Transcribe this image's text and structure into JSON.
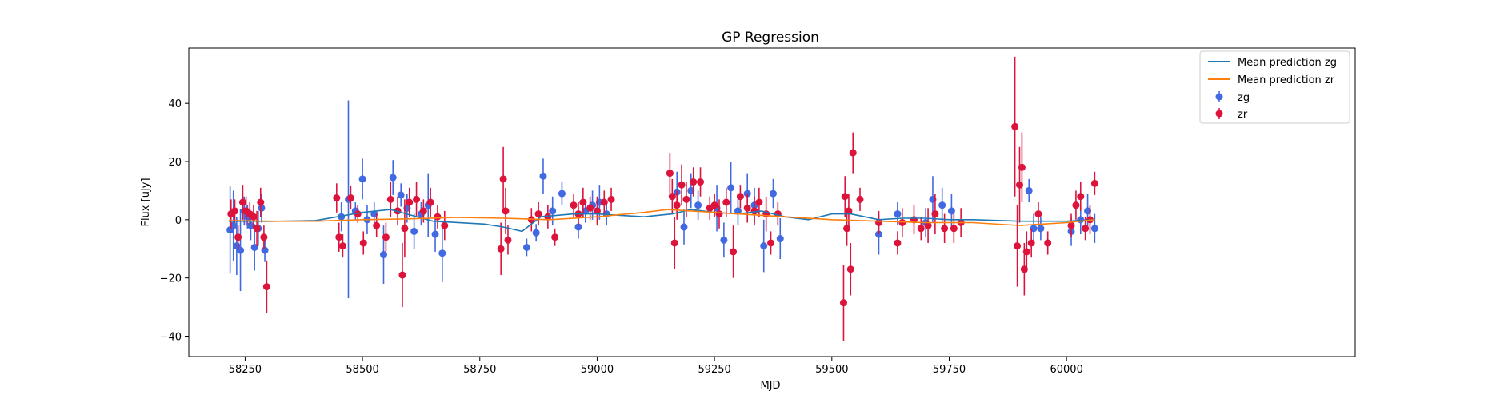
{
  "chart_data": {
    "type": "scatter",
    "title": "GP Regression",
    "xlabel": "MJD",
    "ylabel": "Flux [uJy]",
    "xlim": [
      58130,
      60615
    ],
    "ylim": [
      -47,
      59
    ],
    "xticks": [
      58250,
      58500,
      58750,
      59000,
      59250,
      59500,
      59750,
      60000
    ],
    "yticks": [
      -40,
      -20,
      0,
      20,
      40
    ],
    "legend_position": "top-right",
    "legend": [
      "Mean prediction zg",
      "Mean prediction zr",
      "zg",
      "zr"
    ],
    "colors": {
      "mean_zg": "#1f77b4",
      "mean_zr": "#ff7f0e",
      "zg": "#4169e1",
      "zr": "#dc143c"
    },
    "mean_prediction": [
      {
        "name": "Mean prediction zg",
        "x": [
          58215,
          58300,
          58400,
          58500,
          58560,
          58650,
          58760,
          58800,
          58840,
          58880,
          58950,
          59000,
          59050,
          59100,
          59160,
          59200,
          59250,
          59300,
          59350,
          59400,
          59450,
          59500,
          59540,
          59600,
          59650,
          59700,
          59750,
          59800,
          59900,
          60000,
          60060
        ],
        "y": [
          -0.5,
          -0.6,
          -0.3,
          2.5,
          3.5,
          -0.5,
          -1.5,
          -2.5,
          -4,
          1,
          2,
          2,
          1.5,
          1,
          2,
          3.5,
          2.5,
          2,
          3,
          1,
          0,
          2,
          2,
          0,
          0.5,
          0.5,
          0,
          0,
          -0.5,
          -0.5,
          0
        ]
      },
      {
        "name": "Mean prediction zr",
        "x": [
          58215,
          58300,
          58400,
          58500,
          58600,
          58700,
          58800,
          58900,
          59000,
          59100,
          59150,
          59200,
          59250,
          59300,
          59400,
          59500,
          59600,
          59700,
          59800,
          59900,
          59950,
          60000,
          60060
        ],
        "y": [
          -0.3,
          -0.5,
          -0.5,
          0,
          0.3,
          0.8,
          0.5,
          0,
          1,
          2.5,
          3.5,
          3,
          2.5,
          2,
          1,
          0,
          -0.5,
          -1,
          -1,
          -2,
          -1.5,
          -1,
          0
        ]
      }
    ],
    "series": [
      {
        "name": "zg",
        "x": [
          58218,
          58225,
          58232,
          58240,
          58248,
          58255,
          58262,
          58270,
          58278,
          58285,
          58292,
          58455,
          58470,
          58485,
          58500,
          58510,
          58525,
          58545,
          58565,
          58582,
          58595,
          58610,
          58625,
          58640,
          58655,
          58670,
          58850,
          58870,
          58885,
          58905,
          58925,
          58960,
          58975,
          58990,
          59005,
          59020,
          59170,
          59185,
          59200,
          59215,
          59255,
          59270,
          59285,
          59300,
          59320,
          59335,
          59355,
          59375,
          59390,
          59600,
          59640,
          59700,
          59715,
          59735,
          59755,
          59920,
          59930,
          59945,
          60010,
          60030,
          60045,
          60060
        ],
        "y": [
          -3.5,
          -2,
          -9,
          -10.5,
          3,
          1,
          -2,
          -9.5,
          -3,
          4,
          -10.5,
          1,
          7,
          3,
          14,
          0,
          2,
          -12,
          14.5,
          8.5,
          4,
          -4,
          2,
          5,
          -5,
          -11.5,
          -9.5,
          -4.5,
          15,
          3,
          9,
          -2.5,
          3,
          5,
          6,
          2,
          9.5,
          -2.5,
          10,
          5,
          4,
          -7,
          11,
          3,
          9,
          5,
          -9,
          9,
          -6.5,
          -5,
          2,
          -1,
          7,
          5,
          3,
          10,
          -3,
          -3,
          -4,
          0,
          3,
          -3
        ],
        "err": [
          15,
          12,
          10,
          14,
          5,
          4,
          5,
          8,
          6,
          5,
          4,
          5,
          34,
          3,
          7,
          5,
          4,
          10,
          6,
          4,
          5,
          6,
          4,
          11,
          6,
          10,
          3,
          3,
          6,
          5,
          4,
          4,
          4,
          5,
          6,
          4,
          7,
          6,
          6,
          5,
          8,
          6,
          9,
          5,
          7,
          6,
          9,
          5,
          7,
          7,
          4,
          5,
          8,
          6,
          6,
          4,
          5,
          4,
          5,
          5,
          6,
          5
        ]
      },
      {
        "name": "zr",
        "x": [
          58220,
          58228,
          58235,
          58245,
          58252,
          58260,
          58268,
          58275,
          58283,
          58290,
          58296,
          58445,
          58450,
          58458,
          58475,
          58490,
          58502,
          58530,
          58550,
          58560,
          58575,
          58585,
          58590,
          58600,
          58615,
          58630,
          58645,
          58660,
          58675,
          58795,
          58800,
          58805,
          58810,
          58860,
          58875,
          58895,
          58910,
          58950,
          58960,
          58970,
          58985,
          59000,
          59015,
          59030,
          59155,
          59160,
          59165,
          59170,
          59180,
          59190,
          59205,
          59220,
          59240,
          59250,
          59260,
          59275,
          59290,
          59305,
          59320,
          59335,
          59345,
          59360,
          59370,
          59385,
          59525,
          59528,
          59532,
          59536,
          59540,
          59545,
          59560,
          59600,
          59640,
          59650,
          59675,
          59690,
          59705,
          59720,
          59740,
          59760,
          59775,
          59890,
          59895,
          59900,
          59905,
          59910,
          59915,
          59925,
          59940,
          59960,
          60010,
          60020,
          60030,
          60040,
          60050,
          60060
        ],
        "y": [
          2,
          3,
          -6,
          6,
          3,
          2,
          1,
          -3,
          6,
          -6,
          -23,
          7.5,
          -6,
          -9,
          7.5,
          2,
          -8,
          -2,
          -6,
          7,
          3,
          -19,
          -3,
          6,
          7,
          3,
          6,
          1,
          -2,
          -10,
          14,
          3,
          -7,
          0,
          2,
          1,
          -6,
          5,
          2,
          6,
          4,
          3,
          6,
          7,
          16,
          8,
          -8,
          5,
          12,
          7,
          13,
          13,
          4,
          5,
          2,
          6,
          -11,
          8,
          4,
          3,
          6,
          2,
          -8,
          2,
          -28.5,
          8,
          -3,
          3,
          -17,
          23,
          7,
          -1,
          -8,
          -1,
          0,
          -3,
          -2,
          2,
          -3,
          -3,
          -1,
          32,
          -9,
          12,
          18,
          -17,
          -11,
          -8,
          2,
          -8,
          -2,
          5,
          8,
          -3,
          0,
          12.5
        ],
        "err": [
          5,
          4,
          4,
          6,
          5,
          4,
          4,
          6,
          5,
          4,
          9,
          5,
          5,
          4,
          4,
          3,
          4,
          4,
          5,
          6,
          5,
          11,
          10,
          5,
          6,
          4,
          5,
          4,
          5,
          9,
          11,
          8,
          5,
          4,
          4,
          4,
          3,
          4,
          4,
          5,
          4,
          5,
          4,
          4,
          7,
          6,
          9,
          5,
          7,
          6,
          5,
          5,
          4,
          4,
          5,
          5,
          9,
          4,
          5,
          5,
          5,
          6,
          4,
          4,
          13,
          7,
          6,
          6,
          9,
          7,
          4,
          4,
          4,
          5,
          5,
          4,
          6,
          7,
          5,
          5,
          5,
          24,
          14,
          13,
          12,
          9,
          7,
          5,
          4,
          4,
          4,
          5,
          5,
          4,
          5,
          4
        ]
      }
    ]
  }
}
